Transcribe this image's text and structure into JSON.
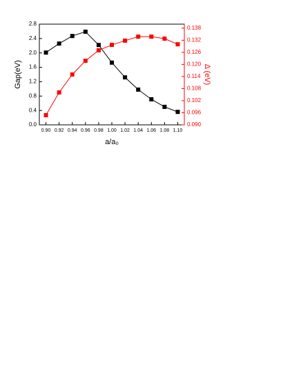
{
  "chart_data": {
    "type": "line",
    "xlabel": "a/a₀",
    "ylabel": "Gap(eV)",
    "y2label": "Δ (eV)",
    "x": [
      0.9,
      0.92,
      0.94,
      0.96,
      0.98,
      1.0,
      1.02,
      1.04,
      1.06,
      1.08,
      1.1
    ],
    "series": [
      {
        "name": "Gap",
        "color": "#000000",
        "values": [
          2.01,
          2.26,
          2.47,
          2.59,
          2.22,
          1.73,
          1.32,
          0.98,
          0.71,
          0.5,
          0.36
        ]
      },
      {
        "name": "Δ",
        "color": "#ff0000",
        "axis": "y2",
        "values": [
          0.0948,
          0.1061,
          0.115,
          0.1218,
          0.127,
          0.1297,
          0.1318,
          0.1338,
          0.1338,
          0.1328,
          0.13
        ]
      }
    ],
    "xlim": [
      0.89,
      1.11
    ],
    "xticks": [
      {
        "value": 0.9,
        "label": "0.90"
      },
      0.92,
      0.94,
      0.96,
      0.98,
      {
        "value": 1.0,
        "label": "1.00"
      },
      1.02,
      1.04,
      1.06,
      1.08,
      {
        "value": 1.1,
        "label": "1.10"
      }
    ],
    "ylim": [
      0,
      2.8
    ],
    "yticks": [
      {
        "value": 0,
        "label": "0.0"
      },
      0.4,
      0.8,
      1.2,
      1.6,
      {
        "value": 2.0,
        "label": "2.0"
      },
      2.4,
      2.8
    ],
    "y2lim": [
      0.09,
      0.14
    ],
    "y2ticks": [
      {
        "value": 0.09,
        "label": "0.090"
      },
      0.096,
      0.102,
      0.108,
      0.114,
      {
        "value": 0.12,
        "label": "0.120"
      },
      0.126,
      0.132,
      0.138
    ]
  }
}
